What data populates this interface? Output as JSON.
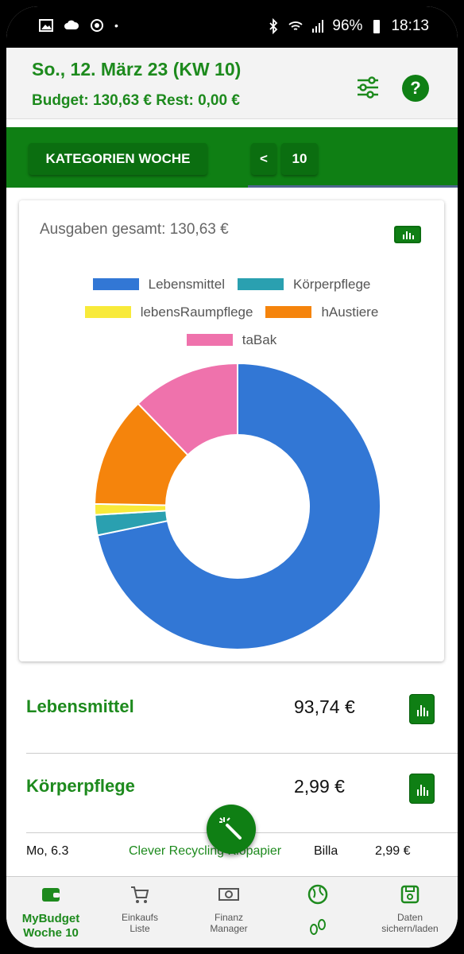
{
  "status": {
    "battery": "96%",
    "time": "18:13"
  },
  "header": {
    "date": "So., 12. März 23 (KW 10)",
    "budget": "Budget: 130,63 € Rest: 0,00 €"
  },
  "tabs": {
    "category_label": "KATEGORIEN WOCHE",
    "prev_label": "<",
    "week_label": "10"
  },
  "card": {
    "total": "Ausgaben gesamt: 130,63 €"
  },
  "chart_data": {
    "type": "pie",
    "series": [
      {
        "name": "Lebensmittel",
        "value": 93.74,
        "color": "#3277d5"
      },
      {
        "name": "Körperpflege",
        "value": 2.99,
        "color": "#2aa0b0"
      },
      {
        "name": "lebensRaumpflege",
        "value": 1.6,
        "color": "#f8ea3a"
      },
      {
        "name": "hAustiere",
        "value": 16.3,
        "color": "#f5840c"
      },
      {
        "name": "taBak",
        "value": 16.0,
        "color": "#ef72ac"
      }
    ],
    "donut": true
  },
  "categories": [
    {
      "name": "Lebensmittel",
      "amount": "93,74 €"
    },
    {
      "name": "Körperpflege",
      "amount": "2,99 €"
    }
  ],
  "entry": {
    "date": "Mo, 6.3",
    "item": "Clever Recycling Klopapier",
    "shop": "Billa",
    "amount": "2,99 €"
  },
  "nav": {
    "mybudget": "MyBudget\nWoche 10",
    "einkauf": "Einkaufs\nListe",
    "finanz": "Finanz\nManager",
    "daten": "Daten\nsichern/laden"
  },
  "colors": {
    "accent": "#0f7f14",
    "accent_text": "#1d8a1d"
  }
}
